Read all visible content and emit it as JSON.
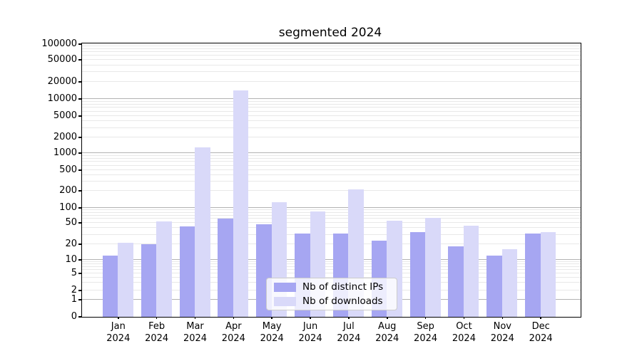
{
  "title": "segmented 2024",
  "chart_data": {
    "type": "bar",
    "scale": "symlog",
    "title": "segmented 2024",
    "xlabel": "",
    "ylabel": "",
    "categories": [
      "Jan",
      "Feb",
      "Mar",
      "Apr",
      "May",
      "Jun",
      "Jul",
      "Aug",
      "Sep",
      "Oct",
      "Nov",
      "Dec"
    ],
    "year_suffix": "2024",
    "series": [
      {
        "name": "Nb of distinct IPs",
        "color": "#a6a6f2",
        "values": [
          12,
          20,
          43,
          60,
          47,
          32,
          32,
          23,
          34,
          18,
          12,
          32
        ]
      },
      {
        "name": "Nb of downloads",
        "color": "#d9d9f9",
        "values": [
          21,
          53,
          1300,
          14000,
          125,
          85,
          210,
          55,
          62,
          44,
          16,
          34
        ]
      }
    ],
    "y_tick_labels": [
      "0",
      "1",
      "2",
      "5",
      "10",
      "20",
      "50",
      "100",
      "200",
      "500",
      "1000",
      "2000",
      "5000",
      "10000",
      "20000",
      "50000",
      "100000"
    ],
    "ylim": [
      0,
      100000
    ],
    "grid": "major+minor horizontal",
    "legend_position": "lower center"
  }
}
